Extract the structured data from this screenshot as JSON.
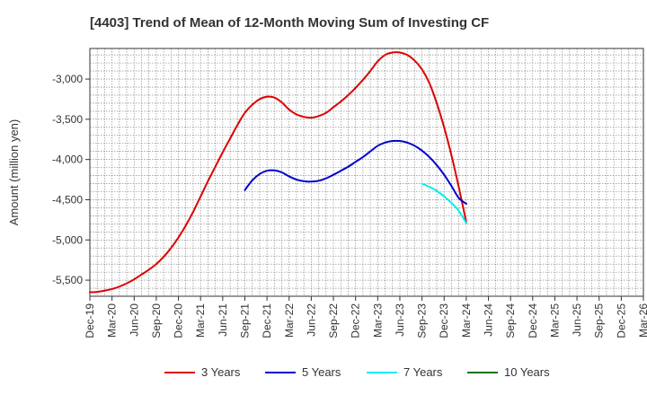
{
  "chart_data": {
    "type": "line",
    "title": "[4403]  Trend of Mean of 12-Month Moving Sum of Investing CF",
    "xlabel": "",
    "ylabel": "Amount (million yen)",
    "ylim": [
      -5700,
      -2620
    ],
    "yticks": [
      -5500,
      -5000,
      -4500,
      -4000,
      -3500,
      -3000
    ],
    "ytick_labels": [
      "-5,500",
      "-5,000",
      "-4,500",
      "-4,000",
      "-3,500",
      "-3,000"
    ],
    "x_range_months": [
      0,
      75
    ],
    "x_ticks": [
      {
        "label": "Dec-19",
        "m": 0
      },
      {
        "label": "Mar-20",
        "m": 3
      },
      {
        "label": "Jun-20",
        "m": 6
      },
      {
        "label": "Sep-20",
        "m": 9
      },
      {
        "label": "Dec-20",
        "m": 12
      },
      {
        "label": "Mar-21",
        "m": 15
      },
      {
        "label": "Jun-21",
        "m": 18
      },
      {
        "label": "Sep-21",
        "m": 21
      },
      {
        "label": "Dec-21",
        "m": 24
      },
      {
        "label": "Mar-22",
        "m": 27
      },
      {
        "label": "Jun-22",
        "m": 30
      },
      {
        "label": "Sep-22",
        "m": 33
      },
      {
        "label": "Dec-22",
        "m": 36
      },
      {
        "label": "Mar-23",
        "m": 39
      },
      {
        "label": "Jun-23",
        "m": 42
      },
      {
        "label": "Sep-23",
        "m": 45
      },
      {
        "label": "Dec-23",
        "m": 48
      },
      {
        "label": "Mar-24",
        "m": 51
      },
      {
        "label": "Jun-24",
        "m": 54
      },
      {
        "label": "Sep-24",
        "m": 57
      },
      {
        "label": "Dec-24",
        "m": 60
      },
      {
        "label": "Mar-25",
        "m": 63
      },
      {
        "label": "Jun-25",
        "m": 66
      },
      {
        "label": "Sep-25",
        "m": 69
      },
      {
        "label": "Dec-25",
        "m": 72
      },
      {
        "label": "Mar-26",
        "m": 75
      }
    ],
    "grid": true,
    "legend_position": "bottom",
    "series": [
      {
        "name": "3 Years",
        "color": "#dd0000",
        "points": [
          [
            0,
            -5650
          ],
          [
            1,
            -5645
          ],
          [
            2,
            -5630
          ],
          [
            3,
            -5610
          ],
          [
            4,
            -5580
          ],
          [
            5,
            -5540
          ],
          [
            6,
            -5490
          ],
          [
            7,
            -5430
          ],
          [
            8,
            -5370
          ],
          [
            9,
            -5300
          ],
          [
            10,
            -5210
          ],
          [
            11,
            -5100
          ],
          [
            12,
            -4970
          ],
          [
            13,
            -4820
          ],
          [
            14,
            -4650
          ],
          [
            15,
            -4460
          ],
          [
            16,
            -4270
          ],
          [
            17,
            -4090
          ],
          [
            18,
            -3910
          ],
          [
            19,
            -3740
          ],
          [
            20,
            -3570
          ],
          [
            21,
            -3420
          ],
          [
            22,
            -3320
          ],
          [
            23,
            -3250
          ],
          [
            24,
            -3220
          ],
          [
            25,
            -3230
          ],
          [
            26,
            -3290
          ],
          [
            27,
            -3380
          ],
          [
            28,
            -3440
          ],
          [
            29,
            -3470
          ],
          [
            30,
            -3480
          ],
          [
            31,
            -3460
          ],
          [
            32,
            -3420
          ],
          [
            33,
            -3350
          ],
          [
            34,
            -3280
          ],
          [
            35,
            -3200
          ],
          [
            36,
            -3110
          ],
          [
            37,
            -3010
          ],
          [
            38,
            -2900
          ],
          [
            39,
            -2780
          ],
          [
            40,
            -2700
          ],
          [
            41,
            -2670
          ],
          [
            42,
            -2670
          ],
          [
            43,
            -2700
          ],
          [
            44,
            -2770
          ],
          [
            45,
            -2880
          ],
          [
            46,
            -3050
          ],
          [
            47,
            -3300
          ],
          [
            48,
            -3600
          ],
          [
            49,
            -3950
          ],
          [
            50,
            -4350
          ],
          [
            51,
            -4780
          ]
        ]
      },
      {
        "name": "5 Years",
        "color": "#0000cc",
        "points": [
          [
            21,
            -4380
          ],
          [
            22,
            -4260
          ],
          [
            23,
            -4180
          ],
          [
            24,
            -4140
          ],
          [
            25,
            -4135
          ],
          [
            26,
            -4160
          ],
          [
            27,
            -4210
          ],
          [
            28,
            -4250
          ],
          [
            29,
            -4270
          ],
          [
            30,
            -4275
          ],
          [
            31,
            -4265
          ],
          [
            32,
            -4235
          ],
          [
            33,
            -4190
          ],
          [
            34,
            -4140
          ],
          [
            35,
            -4090
          ],
          [
            36,
            -4030
          ],
          [
            37,
            -3970
          ],
          [
            38,
            -3900
          ],
          [
            39,
            -3830
          ],
          [
            40,
            -3790
          ],
          [
            41,
            -3770
          ],
          [
            42,
            -3770
          ],
          [
            43,
            -3790
          ],
          [
            44,
            -3830
          ],
          [
            45,
            -3890
          ],
          [
            46,
            -3970
          ],
          [
            47,
            -4070
          ],
          [
            48,
            -4190
          ],
          [
            49,
            -4330
          ],
          [
            50,
            -4480
          ],
          [
            51,
            -4550
          ]
        ]
      },
      {
        "name": "7 Years",
        "color": "#00eeee",
        "points": [
          [
            45,
            -4300
          ],
          [
            46,
            -4340
          ],
          [
            47,
            -4390
          ],
          [
            48,
            -4460
          ],
          [
            49,
            -4540
          ],
          [
            50,
            -4640
          ],
          [
            51,
            -4790
          ]
        ]
      },
      {
        "name": "10 Years",
        "color": "#007700",
        "points": []
      }
    ]
  }
}
